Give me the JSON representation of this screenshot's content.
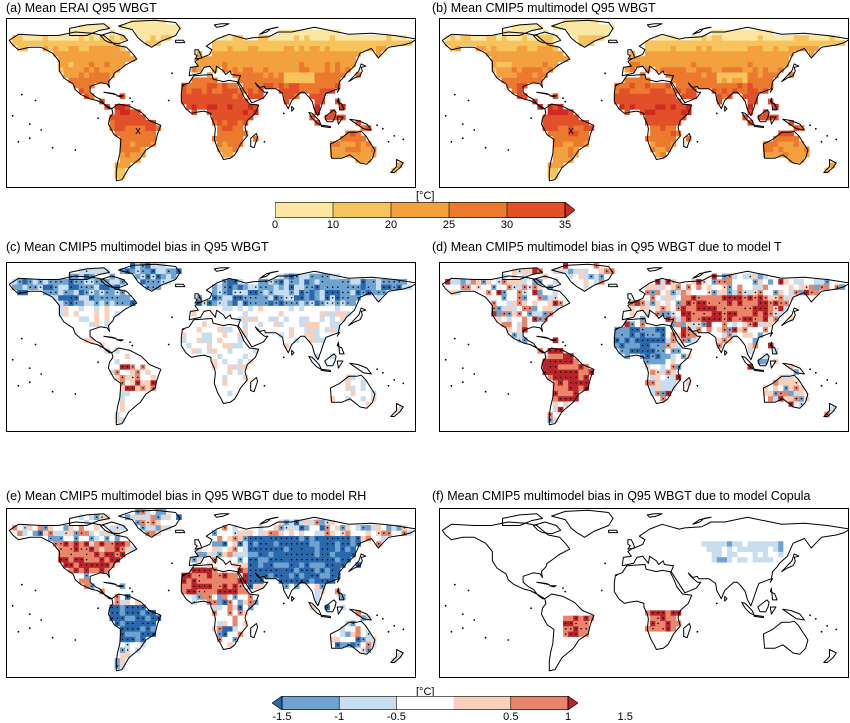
{
  "panels": [
    {
      "title": "(a) Mean ERAI Q95 WBGT",
      "kind": "absolute",
      "marker": "x"
    },
    {
      "title": "(b) Mean CMIP5 multimodel Q95 WBGT",
      "kind": "absolute",
      "marker": "x"
    },
    {
      "title": "(c) Mean CMIP5 multimodel bias in Q95 WBGT",
      "kind": "bias-total"
    },
    {
      "title": "(d) Mean CMIP5 multimodel bias in Q95 WBGT due to model T",
      "kind": "bias-T"
    },
    {
      "title": "(e) Mean CMIP5 multimodel bias in Q95 WBGT due to model RH",
      "kind": "bias-RH"
    },
    {
      "title": "(f) Mean CMIP5 multimodel bias in Q95 WBGT due to model Copula",
      "kind": "bias-copula"
    }
  ],
  "colorbar_top": {
    "unit": "[°C]",
    "ticks": [
      "0",
      "10",
      "20",
      "25",
      "30",
      "35"
    ],
    "colors": [
      "#fbe7a2",
      "#f7c35c",
      "#f2a13e",
      "#ec7a2e",
      "#e2502a",
      "#cf2a22"
    ]
  },
  "colorbar_bottom": {
    "unit": "[°C]",
    "ticks": [
      "-1.5",
      "-1",
      "-0.5",
      "0.5",
      "1",
      "1.5"
    ],
    "colors": [
      "#2a68ad",
      "#6ea2cf",
      "#c8ddef",
      "#ffffff",
      "#f8d0bc",
      "#e8856a",
      "#b9242b"
    ]
  }
}
